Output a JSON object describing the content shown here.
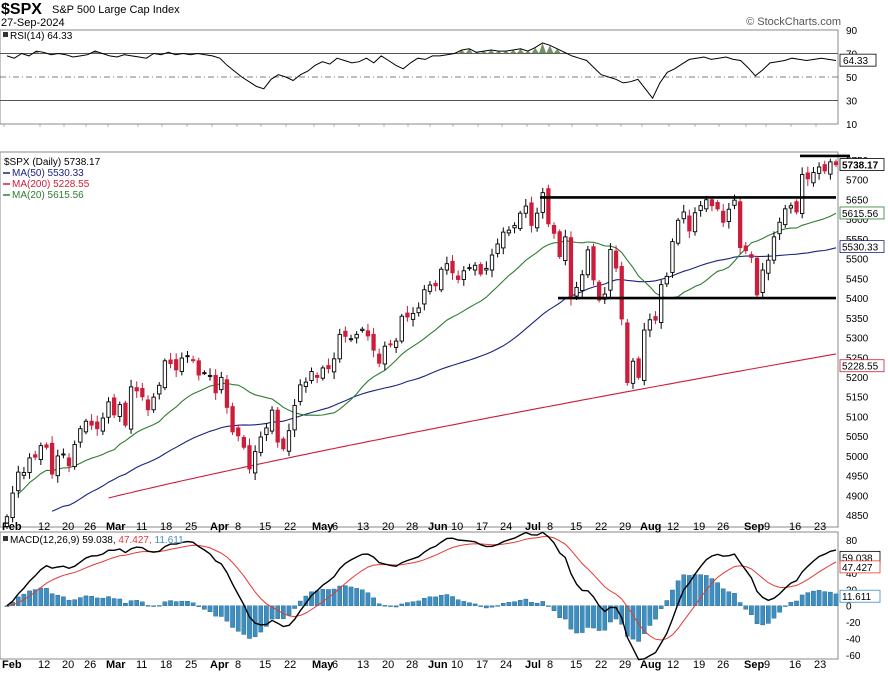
{
  "header": {
    "symbol": "$SPX",
    "name": "S&P 500 Large Cap Index",
    "date": "27-Sep-2024",
    "copyright": "© StockCharts.com"
  },
  "colors": {
    "up_candle": "#000000",
    "down_candle": "#cc1d3a",
    "ma50": "#1a237e",
    "ma200": "#cc1d3a",
    "ma20": "#2e7d32",
    "macd_line": "#000000",
    "signal_line": "#e53935",
    "histogram": "#3d8fc1",
    "rsi_fill": "#5e7d4a"
  },
  "chart_data": [
    {
      "type": "line",
      "panel": "RSI",
      "title": "RSI(14) 64.33",
      "series": [
        {
          "name": "RSI(14)",
          "last": 64.33
        }
      ],
      "y_ticks": [
        90,
        70,
        50,
        30,
        10
      ],
      "ylim": [
        10,
        90
      ],
      "guide_levels": [
        70,
        50,
        30
      ],
      "rsi_values": [
        68,
        66,
        70,
        68,
        72,
        71,
        69,
        70,
        69,
        67,
        68,
        69,
        72,
        70,
        68,
        67,
        69,
        68,
        67,
        66,
        70,
        69,
        71,
        69,
        70,
        69,
        70,
        69,
        68,
        66,
        60,
        55,
        50,
        46,
        42,
        40,
        48,
        52,
        50,
        47,
        52,
        55,
        60,
        63,
        61,
        66,
        64,
        62,
        63,
        66,
        62,
        68,
        64,
        60,
        57,
        62,
        66,
        65,
        68,
        68,
        69,
        70,
        73,
        74,
        71,
        72,
        73,
        72,
        72,
        73,
        74,
        72,
        75,
        79,
        77,
        74,
        71,
        68,
        66,
        64,
        58,
        52,
        50,
        48,
        45,
        46,
        48,
        40,
        32,
        45,
        54,
        57,
        61,
        65,
        66,
        67,
        65,
        66,
        67,
        65,
        64,
        58,
        51,
        56,
        62,
        63,
        64,
        66,
        65,
        64,
        65,
        66,
        65,
        64
      ]
    },
    {
      "type": "candlestick",
      "panel": "Price",
      "title": "$SPX (Daily) 5738.17",
      "last": 5738.17,
      "ylim": [
        4820,
        5770
      ],
      "y_ticks": [
        4850,
        4900,
        4950,
        5000,
        5050,
        5100,
        5150,
        5200,
        5250,
        5300,
        5350,
        5400,
        5450,
        5500,
        5550,
        5600,
        5650,
        5700,
        5750
      ],
      "moving_averages": [
        {
          "name": "MA(50)",
          "last": 5530.33
        },
        {
          "name": "MA(200)",
          "last": 5228.55
        },
        {
          "name": "MA(20)",
          "last": 5615.56
        }
      ],
      "closes": [
        4846,
        4906,
        4959,
        4958,
        4995,
        4997,
        5026,
        5022,
        4954,
        5000,
        5005,
        4975,
        5029,
        5069,
        5088,
        5078,
        5069,
        5096,
        5137,
        5104,
        5130,
        5078,
        5175,
        5165,
        5150,
        5117,
        5149,
        5179,
        5241,
        5234,
        5218,
        5248,
        5254,
        5243,
        5205,
        5211,
        5204,
        5160,
        5199,
        5123,
        5061,
        5051,
        5022,
        4967,
        5011,
        5048,
        5071,
        5116,
        5035,
        5018,
        5064,
        5128,
        5180,
        5187,
        5214,
        5199,
        5223,
        5221,
        5246,
        5308,
        5303,
        5297,
        5308,
        5321,
        5304,
        5268,
        5235,
        5278,
        5283,
        5291,
        5354,
        5352,
        5361,
        5375,
        5421,
        5433,
        5431,
        5473,
        5487,
        5464,
        5447,
        5469,
        5477,
        5483,
        5461,
        5475,
        5509,
        5537,
        5567,
        5572,
        5584,
        5615,
        5633,
        5584,
        5615,
        5667,
        5588,
        5564,
        5505,
        5555,
        5399,
        5427,
        5459,
        5522,
        5446,
        5395,
        5410,
        5523,
        5476,
        5347,
        5186,
        5240,
        5199,
        5319,
        5345,
        5344,
        5434,
        5455,
        5543,
        5597,
        5618,
        5570,
        5616,
        5634,
        5649,
        5634,
        5626,
        5592,
        5625,
        5648,
        5528,
        5520,
        5503,
        5408,
        5471,
        5496,
        5555,
        5592,
        5626,
        5634,
        5618,
        5713,
        5702,
        5718,
        5732,
        5722,
        5745,
        5738
      ]
    },
    {
      "type": "bar",
      "panel": "MACD",
      "title": "MACD(12,26,9) 59.038, 47.427, 11.611",
      "series": [
        {
          "name": "MACD(12,26,9)",
          "last": 59.038
        },
        {
          "name": "Signal",
          "last": 47.427
        },
        {
          "name": "Histogram",
          "last": 11.611
        }
      ],
      "y_ticks": [
        80,
        60,
        40,
        20,
        0,
        -20,
        -40,
        -60
      ],
      "ylim": [
        -65,
        90
      ]
    }
  ],
  "x_axis": {
    "labels": [
      "Feb",
      "12",
      "20",
      "26",
      "Mar",
      "11",
      "18",
      "25",
      "Apr",
      "8",
      "15",
      "22",
      "May",
      "6",
      "13",
      "20",
      "28",
      "Jun",
      "10",
      "17",
      "24",
      "Jul",
      "8",
      "15",
      "22",
      "29",
      "Aug",
      "12",
      "19",
      "26",
      "Sep",
      "9",
      "16",
      "23"
    ],
    "bold": [
      "Feb",
      "Mar",
      "Apr",
      "May",
      "Jun",
      "Jul",
      "Aug",
      "Sep"
    ]
  },
  "right_labels": {
    "rsi_last": "64.33",
    "price_last": "5738.17",
    "ma20_last": "5615.56",
    "ma50_last": "5530.33",
    "ma200_last": "5228.55",
    "macd_last": "59.038",
    "signal_last": "47.427",
    "hist_last": "11.611"
  }
}
